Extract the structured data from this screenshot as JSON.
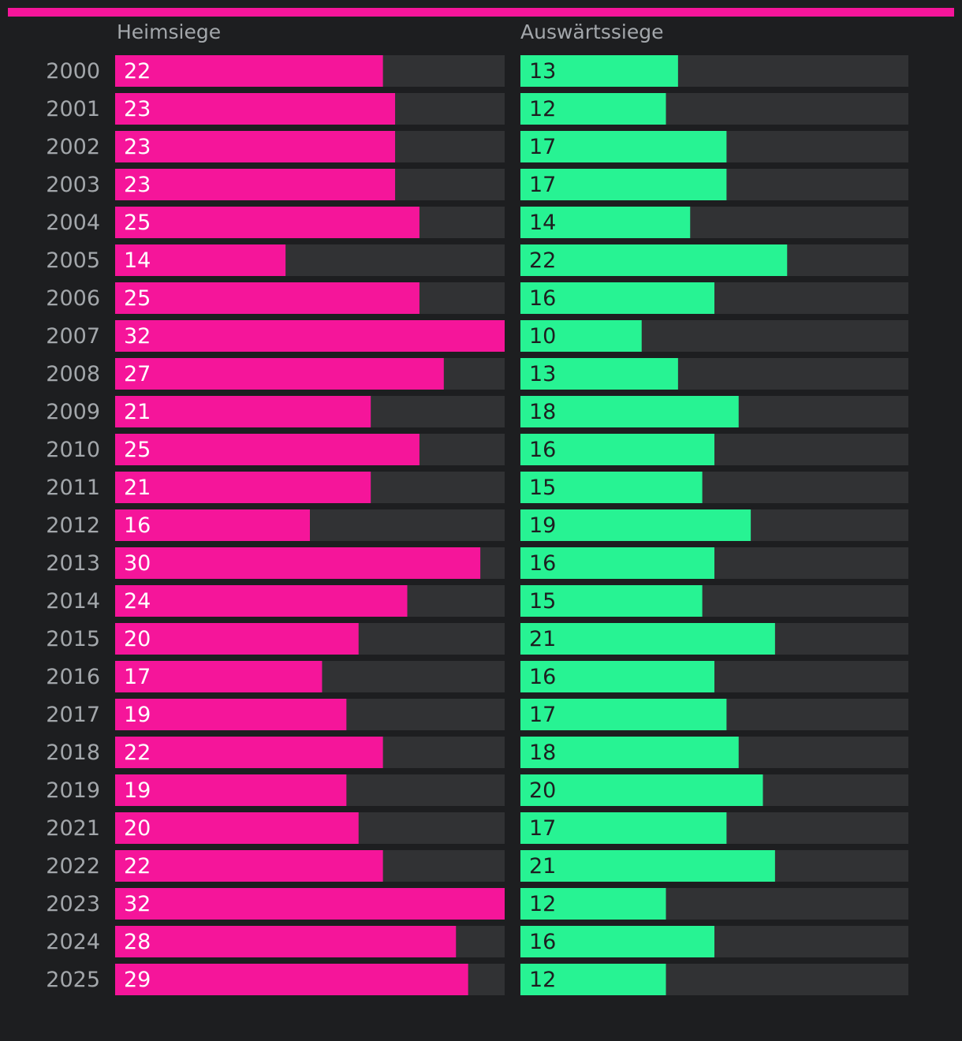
{
  "colors": {
    "background": "#1d1e20",
    "track": "#313234",
    "home": "#f5159a",
    "away": "#27f393",
    "year_label": "#a3a7ab",
    "home_value": "#ffffff",
    "away_value": "#1d1e20"
  },
  "chart_data": {
    "type": "bar",
    "orientation": "horizontal",
    "xlim": [
      0,
      32
    ],
    "categories": [
      "2000",
      "2001",
      "2002",
      "2003",
      "2004",
      "2005",
      "2006",
      "2007",
      "2008",
      "2009",
      "2010",
      "2011",
      "2012",
      "2013",
      "2014",
      "2015",
      "2016",
      "2017",
      "2018",
      "2019",
      "2021",
      "2022",
      "2023",
      "2024",
      "2025"
    ],
    "series": [
      {
        "name": "Heimsiege",
        "values": [
          22,
          23,
          23,
          23,
          25,
          14,
          25,
          32,
          27,
          21,
          25,
          21,
          16,
          30,
          24,
          20,
          17,
          19,
          22,
          19,
          20,
          22,
          32,
          28,
          29
        ]
      },
      {
        "name": "Auswärtssiege",
        "values": [
          13,
          12,
          17,
          17,
          14,
          22,
          16,
          10,
          13,
          18,
          16,
          15,
          19,
          16,
          15,
          21,
          16,
          17,
          18,
          20,
          17,
          21,
          12,
          16,
          12
        ]
      }
    ]
  }
}
